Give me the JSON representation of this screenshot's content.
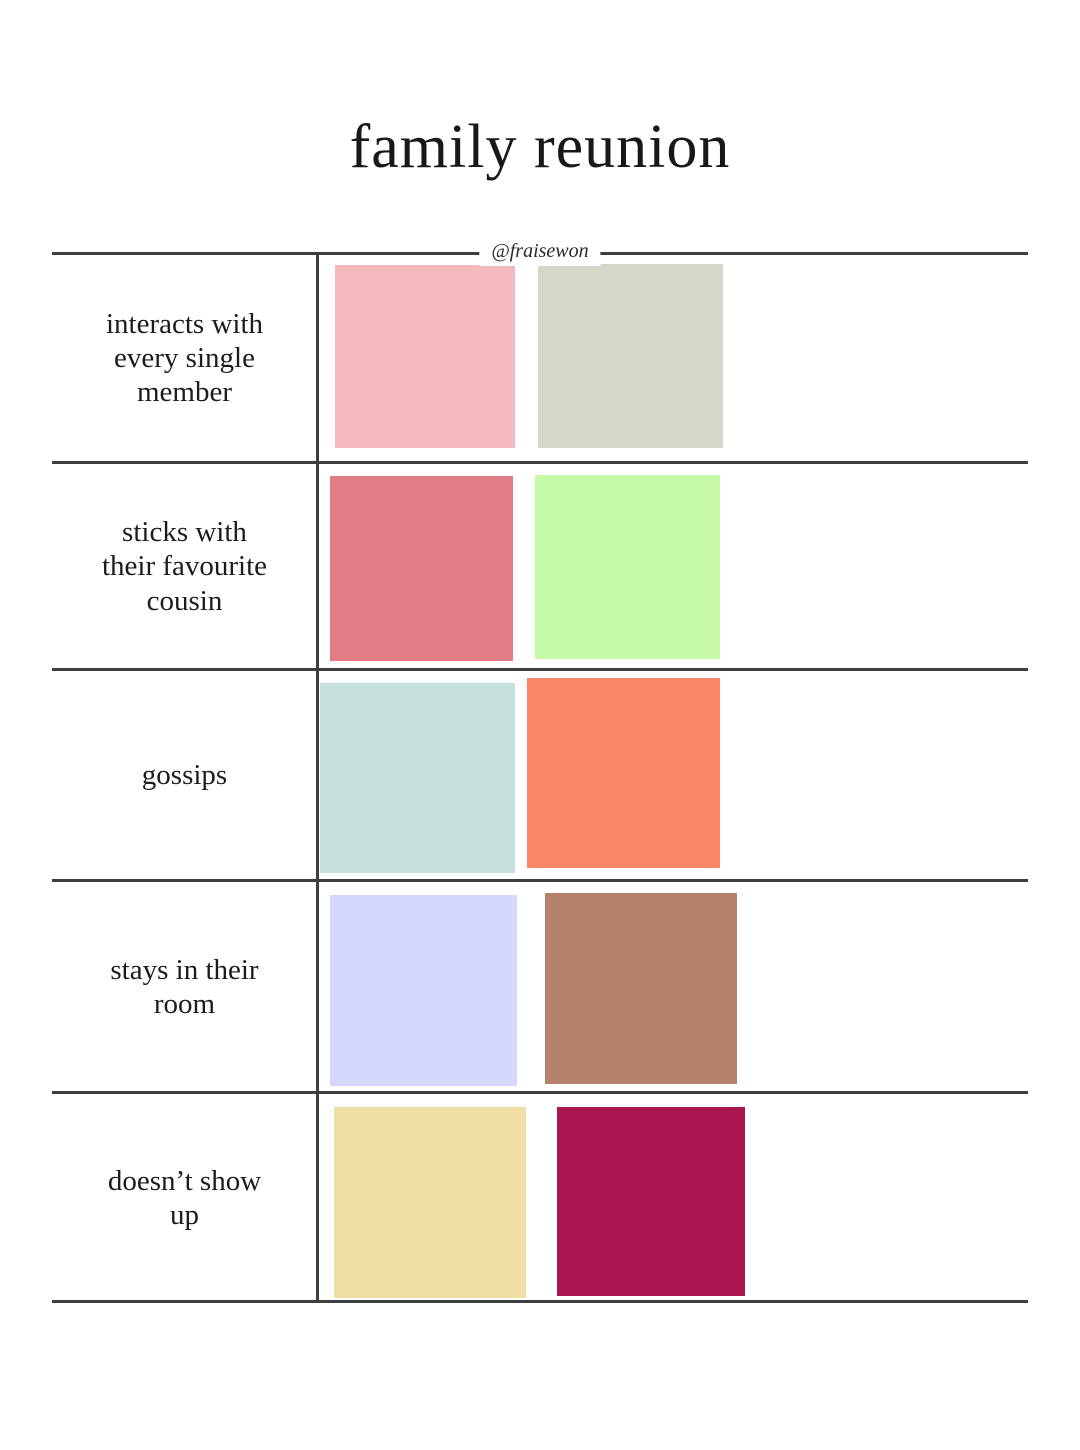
{
  "title": "family reunion",
  "watermark": "@fraisewon",
  "colors": {
    "background": "#ffffff",
    "grid_line": "#3e3e3e",
    "text": "#1c1c1c"
  },
  "rows": [
    {
      "label": "interacts with\nevery single\nmember",
      "swatches": [
        {
          "name": "soft-pink",
          "color": "#f4b9bc"
        },
        {
          "name": "beige-gray",
          "color": "#d7d7c9"
        }
      ]
    },
    {
      "label": "sticks with\ntheir favourite\ncousin",
      "swatches": [
        {
          "name": "coral-red",
          "color": "#e17b84"
        },
        {
          "name": "light-green",
          "color": "#c7fbaa"
        }
      ]
    },
    {
      "label": "gossips",
      "swatches": [
        {
          "name": "pale-mint",
          "color": "#c6e0dc"
        },
        {
          "name": "orange",
          "color": "#fc8768"
        }
      ]
    },
    {
      "label": "stays in their\nroom",
      "swatches": [
        {
          "name": "lavender",
          "color": "#d5d7fd"
        },
        {
          "name": "warm-brown",
          "color": "#b5826c"
        }
      ]
    },
    {
      "label": "doesn’t show\nup",
      "swatches": [
        {
          "name": "pale-yellow",
          "color": "#f0dfa4"
        },
        {
          "name": "raspberry",
          "color": "#ab1851"
        }
      ]
    }
  ]
}
